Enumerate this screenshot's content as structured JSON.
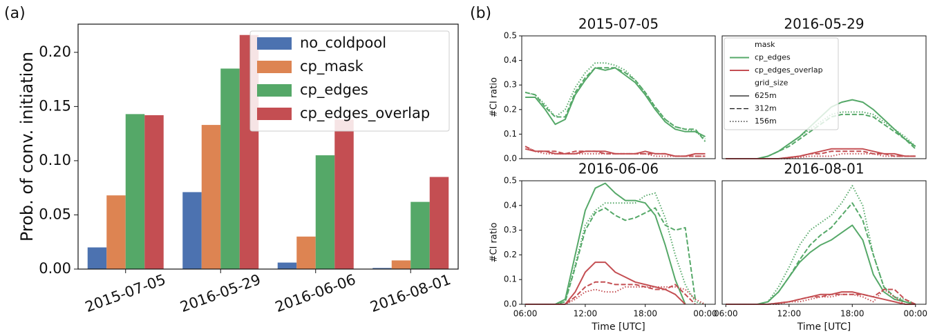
{
  "panel_labels": [
    "(a)",
    "(b)"
  ],
  "chart_data": [
    {
      "type": "bar",
      "ylabel": "Prob. of conv. initiation",
      "categories": [
        "2015-07-05",
        "2016-05-29",
        "2016-06-06",
        "2016-08-01"
      ],
      "series": [
        {
          "name": "no_coldpool",
          "color": "#4c72b0",
          "values": [
            0.02,
            0.071,
            0.006,
            0.001
          ]
        },
        {
          "name": "cp_mask",
          "color": "#dd8452",
          "values": [
            0.068,
            0.133,
            0.03,
            0.008
          ]
        },
        {
          "name": "cp_edges",
          "color": "#55a868",
          "values": [
            0.143,
            0.185,
            0.105,
            0.062
          ]
        },
        {
          "name": "cp_edges_overlap",
          "color": "#c44e52",
          "values": [
            0.142,
            0.216,
            0.138,
            0.085
          ]
        }
      ],
      "ylim": [
        0,
        0.226
      ],
      "yticks": [
        {
          "value": 0,
          "label": "0.00"
        },
        {
          "value": 0.05,
          "label": "0.05"
        },
        {
          "value": 0.1,
          "label": "0.10"
        },
        {
          "value": 0.15,
          "label": "0.15"
        },
        {
          "value": 0.2,
          "label": "0.20"
        }
      ],
      "legend": "upper right"
    },
    {
      "type": "line",
      "title": "2015-07-05",
      "ylabel": "#CI ratio",
      "x": [
        6,
        7,
        8,
        9,
        10,
        11,
        12,
        13,
        14,
        15,
        16,
        17,
        18,
        19,
        20,
        21,
        22,
        23,
        24
      ],
      "xlim": [
        5.65,
        25.0
      ],
      "ylim": [
        0,
        0.5
      ],
      "yticks": [
        {
          "value": 0,
          "label": "0.0"
        },
        0.1,
        0.2,
        0.3,
        0.4,
        0.5
      ],
      "series": [
        {
          "color": "#55a868",
          "dash": "solid",
          "values": [
            0.25,
            0.25,
            0.2,
            0.14,
            0.16,
            0.26,
            0.32,
            0.37,
            0.36,
            0.37,
            0.34,
            0.31,
            0.26,
            0.2,
            0.15,
            0.12,
            0.11,
            0.11,
            0.09
          ]
        },
        {
          "color": "#55a868",
          "dash": "dashed",
          "values": [
            0.27,
            0.26,
            0.21,
            0.17,
            0.17,
            0.27,
            0.33,
            0.37,
            0.37,
            0.37,
            0.35,
            0.32,
            0.27,
            0.21,
            0.16,
            0.13,
            0.12,
            0.12,
            0.07
          ]
        },
        {
          "color": "#55a868",
          "dash": "dotted",
          "values": [
            0.27,
            0.26,
            0.22,
            0.17,
            0.2,
            0.29,
            0.35,
            0.39,
            0.39,
            0.38,
            0.36,
            0.32,
            0.27,
            0.21,
            0.16,
            0.13,
            0.12,
            0.11,
            0.08
          ]
        },
        {
          "color": "#c44e52",
          "dash": "solid",
          "values": [
            0.04,
            0.03,
            0.03,
            0.02,
            0.02,
            0.02,
            0.03,
            0.03,
            0.03,
            0.02,
            0.02,
            0.02,
            0.03,
            0.02,
            0.02,
            0.01,
            0.01,
            0.02,
            0.02
          ]
        },
        {
          "color": "#c44e52",
          "dash": "dashed",
          "values": [
            0.05,
            0.03,
            0.03,
            0.03,
            0.02,
            0.03,
            0.03,
            0.03,
            0.02,
            0.02,
            0.02,
            0.02,
            0.02,
            0.02,
            0.02,
            0.01,
            0.01,
            0.01,
            0.01
          ]
        },
        {
          "color": "#c44e52",
          "dash": "dotted",
          "values": [
            0.05,
            0.03,
            0.02,
            0.02,
            0.02,
            0.02,
            0.02,
            0.02,
            0.02,
            0.02,
            0.02,
            0.02,
            0.02,
            0.01,
            0.01,
            0.01,
            0.01,
            0.01,
            0.01
          ]
        }
      ]
    },
    {
      "type": "line",
      "title": "2016-05-29",
      "x": [
        6,
        7,
        8,
        9,
        10,
        11,
        12,
        13,
        14,
        15,
        16,
        17,
        18,
        19,
        20,
        21,
        22,
        23,
        24
      ],
      "xlim": [
        5.65,
        25.0
      ],
      "ylim": [
        0,
        0.5
      ],
      "series": [
        {
          "color": "#55a868",
          "dash": "solid",
          "values": [
            0,
            0,
            0,
            0,
            0.01,
            0.03,
            0.06,
            0.09,
            0.13,
            0.17,
            0.21,
            0.23,
            0.24,
            0.23,
            0.2,
            0.16,
            0.12,
            0.08,
            0.05
          ]
        },
        {
          "color": "#55a868",
          "dash": "dashed",
          "values": [
            0,
            0,
            0,
            0,
            0.01,
            0.03,
            0.05,
            0.08,
            0.11,
            0.14,
            0.17,
            0.18,
            0.18,
            0.18,
            0.17,
            0.14,
            0.11,
            0.08,
            0.04
          ]
        },
        {
          "color": "#55a868",
          "dash": "dotted",
          "values": [
            0,
            0,
            0,
            0,
            0.01,
            0.03,
            0.06,
            0.09,
            0.12,
            0.15,
            0.18,
            0.19,
            0.19,
            0.19,
            0.18,
            0.15,
            0.12,
            0.09,
            0.05
          ]
        },
        {
          "color": "#c44e52",
          "dash": "solid",
          "values": [
            0,
            0,
            0,
            0,
            0,
            0,
            0.005,
            0.01,
            0.02,
            0.03,
            0.04,
            0.04,
            0.04,
            0.04,
            0.03,
            0.02,
            0.02,
            0.01,
            0.01
          ]
        },
        {
          "color": "#c44e52",
          "dash": "dashed",
          "values": [
            0,
            0,
            0,
            0,
            0,
            0,
            0.005,
            0.01,
            0.02,
            0.02,
            0.03,
            0.03,
            0.03,
            0.03,
            0.02,
            0.02,
            0.01,
            0.01,
            0.01
          ]
        },
        {
          "color": "#c44e52",
          "dash": "dotted",
          "values": [
            0,
            0,
            0,
            0,
            0,
            0,
            0,
            0.005,
            0.01,
            0.01,
            0.01,
            0.02,
            0.02,
            0.02,
            0.02,
            0.01,
            0.01,
            0.01,
            0.01
          ]
        }
      ],
      "legend": {
        "items": [
          {
            "label": "mask"
          },
          {
            "label": "cp_edges",
            "color": "#55a868"
          },
          {
            "label": "cp_edges_overlap",
            "color": "#c44e52"
          },
          {
            "label": "grid_size"
          },
          {
            "label": "625m",
            "dash": "solid"
          },
          {
            "label": "312m",
            "dash": "dashed"
          },
          {
            "label": "156m",
            "dash": "dotted"
          }
        ]
      }
    },
    {
      "type": "line",
      "title": "2016-06-06",
      "ylabel": "#CI ratio",
      "xlabel": "Time [UTC]",
      "x": [
        6,
        7,
        8,
        9,
        10,
        11,
        12,
        13,
        14,
        15,
        16,
        17,
        18,
        19,
        20,
        21,
        22,
        23,
        24
      ],
      "xlim": [
        5.65,
        25.0
      ],
      "ylim": [
        0,
        0.5
      ],
      "xticks": [
        {
          "value": 6,
          "label": "06:00"
        },
        {
          "value": 12,
          "label": "12:00"
        },
        {
          "value": 18,
          "label": "18:00"
        },
        {
          "value": 24,
          "label": "00:00"
        }
      ],
      "yticks": [
        {
          "value": 0,
          "label": "0.0"
        },
        0.1,
        0.2,
        0.3,
        0.4,
        0.5
      ],
      "series": [
        {
          "color": "#55a868",
          "dash": "solid",
          "values": [
            0,
            0,
            0,
            0,
            0.02,
            0.2,
            0.38,
            0.47,
            0.49,
            0.45,
            0.42,
            0.42,
            0.41,
            0.36,
            0.24,
            0.1,
            0,
            null,
            null
          ]
        },
        {
          "color": "#55a868",
          "dash": "dashed",
          "values": [
            0,
            0,
            0,
            0,
            0.01,
            0.15,
            0.3,
            0.37,
            0.39,
            0.36,
            0.34,
            0.35,
            0.37,
            0.39,
            0.32,
            0.3,
            0.31,
            0.02,
            null
          ]
        },
        {
          "color": "#55a868",
          "dash": "dotted",
          "values": [
            0,
            0,
            0,
            0,
            0.01,
            0.16,
            0.32,
            0.38,
            0.41,
            0.41,
            0.41,
            0.41,
            0.44,
            0.45,
            0.35,
            0.2,
            0.08,
            0.01,
            0
          ]
        },
        {
          "color": "#c44e52",
          "dash": "solid",
          "values": [
            0,
            0,
            0,
            0,
            0,
            0.05,
            0.13,
            0.17,
            0.17,
            0.13,
            0.11,
            0.09,
            0.08,
            0.07,
            0.06,
            0.04,
            0,
            null,
            null
          ]
        },
        {
          "color": "#c44e52",
          "dash": "dashed",
          "values": [
            0,
            0,
            0,
            0,
            0,
            0.03,
            0.07,
            0.09,
            0.09,
            0.08,
            0.08,
            0.08,
            0.07,
            0.06,
            0.06,
            0.08,
            0.04,
            0,
            null
          ]
        },
        {
          "color": "#c44e52",
          "dash": "dotted",
          "values": [
            0,
            0,
            0,
            0,
            0,
            0.02,
            0.05,
            0.06,
            0.05,
            0.05,
            0.07,
            0.07,
            0.07,
            0.07,
            0.07,
            0.07,
            0.06,
            0.02,
            0
          ]
        }
      ]
    },
    {
      "type": "line",
      "title": "2016-08-01",
      "xlabel": "Time [UTC]",
      "x": [
        6,
        7,
        8,
        9,
        10,
        11,
        12,
        13,
        14,
        15,
        16,
        17,
        18,
        19,
        20,
        21,
        22,
        23,
        24
      ],
      "xlim": [
        5.65,
        25.0
      ],
      "ylim": [
        0,
        0.5
      ],
      "xticks": [
        {
          "value": 6,
          "label": "06:00"
        },
        {
          "value": 12,
          "label": "12:00"
        },
        {
          "value": 18,
          "label": "18:00"
        },
        {
          "value": 24,
          "label": "00:00"
        }
      ],
      "series": [
        {
          "color": "#55a868",
          "dash": "solid",
          "values": [
            0,
            0,
            0,
            0,
            0.01,
            0.05,
            0.11,
            0.17,
            0.21,
            0.24,
            0.26,
            0.29,
            0.32,
            0.26,
            0.12,
            0.05,
            0.02,
            0.01,
            0
          ]
        },
        {
          "color": "#55a868",
          "dash": "dashed",
          "values": [
            0,
            0,
            0,
            0,
            0.01,
            0.05,
            0.11,
            0.18,
            0.24,
            0.28,
            0.31,
            0.36,
            0.41,
            0.34,
            0.2,
            0.07,
            0.03,
            0.01,
            0
          ]
        },
        {
          "color": "#55a868",
          "dash": "dotted",
          "values": [
            0,
            0,
            0,
            0,
            0.01,
            0.07,
            0.15,
            0.24,
            0.3,
            0.33,
            0.36,
            0.41,
            0.48,
            0.4,
            0.2,
            0.07,
            0.03,
            0.02,
            0
          ]
        },
        {
          "color": "#c44e52",
          "dash": "solid",
          "values": [
            0,
            0,
            0,
            0,
            0,
            0.005,
            0.01,
            0.02,
            0.03,
            0.04,
            0.04,
            0.05,
            0.05,
            0.04,
            0.03,
            0.02,
            0.01,
            0,
            0
          ]
        },
        {
          "color": "#c44e52",
          "dash": "dashed",
          "values": [
            0,
            0,
            0,
            0,
            0,
            0.005,
            0.01,
            0.02,
            0.03,
            0.03,
            0.04,
            0.04,
            0.04,
            0.04,
            0.03,
            0.06,
            0.06,
            0.02,
            0
          ]
        },
        {
          "color": "#c44e52",
          "dash": "dotted",
          "values": [
            0,
            0,
            0,
            0,
            0,
            0,
            0.01,
            0.01,
            0.02,
            0.03,
            0.03,
            0.04,
            0.04,
            0.03,
            0.01,
            0.06,
            0.03,
            0,
            0
          ]
        }
      ]
    }
  ]
}
